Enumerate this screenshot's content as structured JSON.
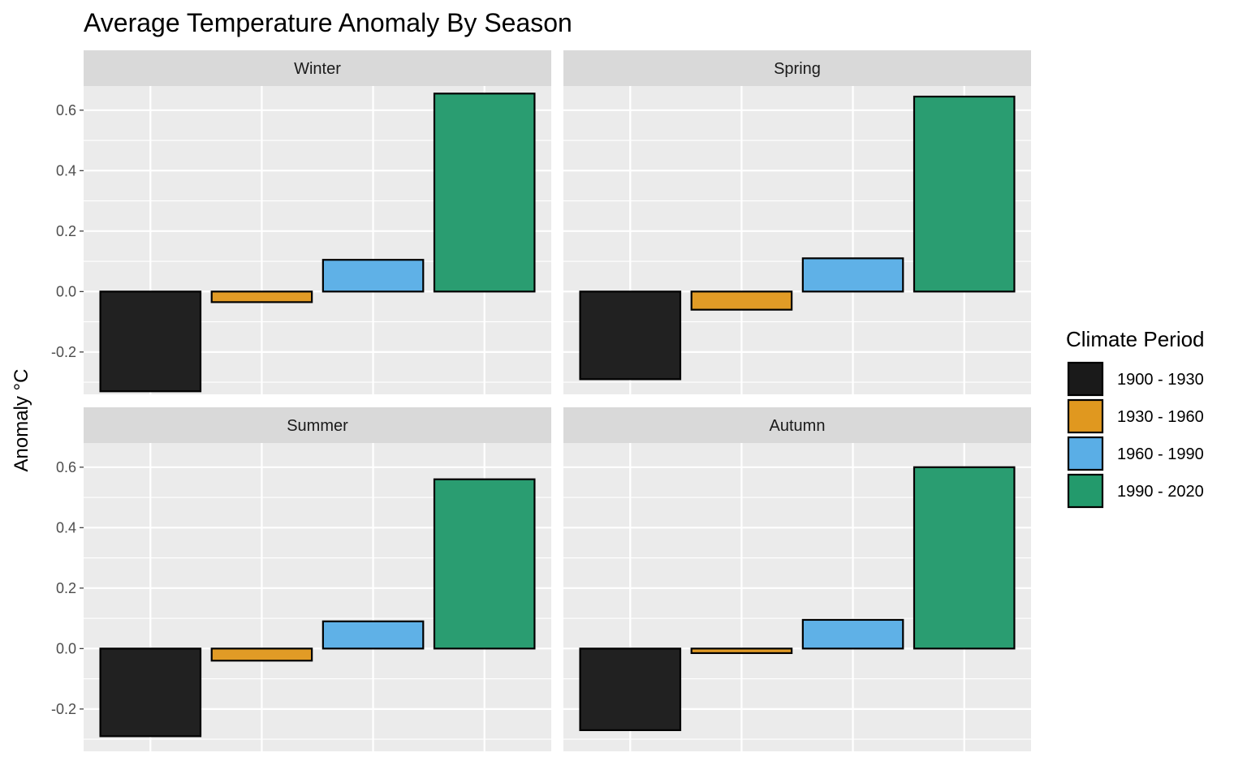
{
  "chart_data": {
    "type": "bar",
    "title": "Average Temperature Anomaly By Season",
    "ylabel": "Anomaly °C",
    "xlabel": "",
    "ylim": [
      -0.34,
      0.68
    ],
    "yticks": [
      -0.2,
      0.0,
      0.2,
      0.4,
      0.6
    ],
    "ytick_labels": [
      "-0.2",
      "0.0",
      "0.2",
      "0.4",
      "0.6"
    ],
    "grid": true,
    "legend_position": "right",
    "legend_title": "Climate Period",
    "categories": [
      "1900 - 1930",
      "1930 - 1960",
      "1960 - 1990",
      "1990 - 2020"
    ],
    "colors": [
      "#1a1a1a",
      "#e0981f",
      "#5aaee6",
      "#239a6c"
    ],
    "facets": [
      {
        "name": "Winter",
        "values": [
          -0.33,
          -0.035,
          0.105,
          0.655
        ]
      },
      {
        "name": "Spring",
        "values": [
          -0.29,
          -0.06,
          0.11,
          0.645
        ]
      },
      {
        "name": "Summer",
        "values": [
          -0.29,
          -0.04,
          0.09,
          0.56
        ]
      },
      {
        "name": "Autumn",
        "values": [
          -0.27,
          -0.015,
          0.095,
          0.6
        ]
      }
    ]
  }
}
